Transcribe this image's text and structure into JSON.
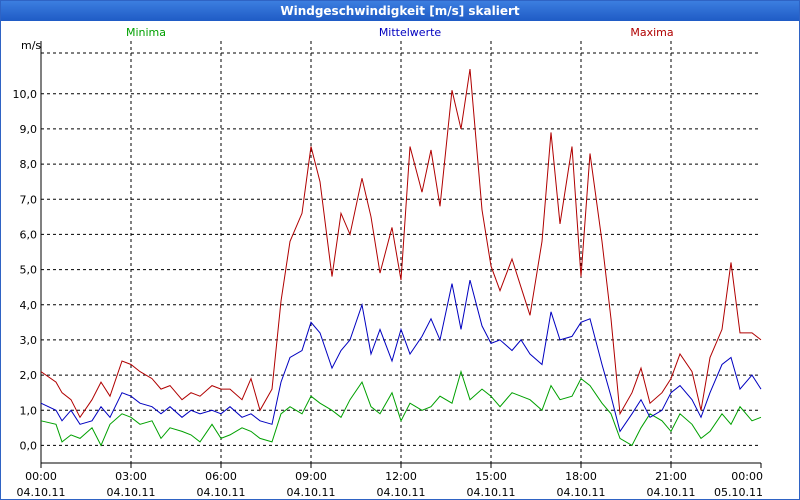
{
  "window": {
    "title": "Windgeschwindigkeit [m/s] skaliert"
  },
  "chart_data": {
    "type": "line",
    "title": "Windgeschwindigkeit [m/s] skaliert",
    "ylabel": "m/s",
    "xlabel": "",
    "ylim": [
      -0.5,
      11.5
    ],
    "xlim": [
      0,
      24
    ],
    "yticks": [
      0,
      1,
      2,
      3,
      4,
      5,
      6,
      7,
      8,
      9,
      10
    ],
    "ytick_labels": [
      "0,0",
      "1,0",
      "2,0",
      "3,0",
      "4,0",
      "5,0",
      "6,0",
      "7,0",
      "8,0",
      "9,0",
      "10,0"
    ],
    "xticks": [
      0,
      3,
      6,
      9,
      12,
      15,
      18,
      21,
      24
    ],
    "xtick_times": [
      "00:00",
      "03:00",
      "06:00",
      "09:00",
      "12:00",
      "15:00",
      "18:00",
      "21:00",
      "00:00"
    ],
    "xtick_dates": [
      "04.10.11",
      "04.10.11",
      "04.10.11",
      "04.10.11",
      "04.10.11",
      "04.10.11",
      "04.10.11",
      "04.10.11",
      "05.10.11"
    ],
    "grid": true,
    "series": [
      {
        "name": "Minima",
        "color": "#00a000",
        "x": [
          0,
          0.5,
          0.7,
          1,
          1.3,
          1.7,
          2,
          2.3,
          2.7,
          3,
          3.3,
          3.7,
          4,
          4.3,
          4.7,
          5,
          5.3,
          5.7,
          6,
          6.3,
          6.7,
          7,
          7.3,
          7.7,
          8,
          8.3,
          8.7,
          9,
          9.3,
          9.7,
          10,
          10.3,
          10.7,
          11,
          11.3,
          11.7,
          12,
          12.3,
          12.7,
          13,
          13.3,
          13.7,
          14,
          14.3,
          14.7,
          15,
          15.3,
          15.7,
          16,
          16.3,
          16.7,
          17,
          17.3,
          17.7,
          18,
          18.3,
          18.7,
          19,
          19.3,
          19.7,
          20,
          20.3,
          20.7,
          21,
          21.3,
          21.7,
          22,
          22.3,
          22.7,
          23,
          23.3,
          23.7,
          24
        ],
        "values": [
          0.7,
          0.6,
          0.1,
          0.3,
          0.2,
          0.5,
          0,
          0.6,
          0.9,
          0.8,
          0.6,
          0.7,
          0.2,
          0.5,
          0.4,
          0.3,
          0.1,
          0.6,
          0.2,
          0.3,
          0.5,
          0.4,
          0.2,
          0.1,
          0.9,
          1.1,
          0.9,
          1.4,
          1.2,
          1.0,
          0.8,
          1.3,
          1.8,
          1.1,
          0.9,
          1.5,
          0.7,
          1.2,
          1.0,
          1.1,
          1.4,
          1.2,
          2.1,
          1.3,
          1.6,
          1.4,
          1.1,
          1.5,
          1.4,
          1.3,
          1.0,
          1.7,
          1.3,
          1.4,
          1.9,
          1.7,
          1.2,
          0.9,
          0.2,
          0,
          0.5,
          0.9,
          0.7,
          0.4,
          0.9,
          0.6,
          0.2,
          0.4,
          0.9,
          0.6,
          1.1,
          0.7,
          0.8
        ]
      },
      {
        "name": "Mittelwerte",
        "color": "#0000c0",
        "x": [
          0,
          0.5,
          0.7,
          1,
          1.3,
          1.7,
          2,
          2.3,
          2.7,
          3,
          3.3,
          3.7,
          4,
          4.3,
          4.7,
          5,
          5.3,
          5.7,
          6,
          6.3,
          6.7,
          7,
          7.3,
          7.7,
          8,
          8.3,
          8.7,
          9,
          9.3,
          9.7,
          10,
          10.3,
          10.7,
          11,
          11.3,
          11.7,
          12,
          12.3,
          12.7,
          13,
          13.3,
          13.7,
          14,
          14.3,
          14.7,
          15,
          15.3,
          15.7,
          16,
          16.3,
          16.7,
          17,
          17.3,
          17.7,
          18,
          18.3,
          18.7,
          19,
          19.3,
          19.7,
          20,
          20.3,
          20.7,
          21,
          21.3,
          21.7,
          22,
          22.3,
          22.7,
          23,
          23.3,
          23.7,
          24
        ],
        "values": [
          1.2,
          1.0,
          0.7,
          1.0,
          0.6,
          0.7,
          1.1,
          0.8,
          1.5,
          1.4,
          1.2,
          1.1,
          0.9,
          1.1,
          0.8,
          1.0,
          0.9,
          1.0,
          0.9,
          1.1,
          0.8,
          0.9,
          0.7,
          0.6,
          1.8,
          2.5,
          2.7,
          3.5,
          3.2,
          2.2,
          2.7,
          3.0,
          4.0,
          2.6,
          3.3,
          2.4,
          3.3,
          2.6,
          3.1,
          3.6,
          3.0,
          4.6,
          3.3,
          4.7,
          3.4,
          2.9,
          3.0,
          2.7,
          3.0,
          2.6,
          2.3,
          3.8,
          3.0,
          3.1,
          3.5,
          3.6,
          2.3,
          1.4,
          0.4,
          0.9,
          1.3,
          0.8,
          1.0,
          1.5,
          1.7,
          1.3,
          0.8,
          1.5,
          2.3,
          2.5,
          1.6,
          2.0,
          1.6
        ]
      },
      {
        "name": "Maxima",
        "color": "#b00000",
        "x": [
          0,
          0.5,
          0.7,
          1,
          1.3,
          1.7,
          2,
          2.3,
          2.7,
          3,
          3.3,
          3.7,
          4,
          4.3,
          4.7,
          5,
          5.3,
          5.7,
          6,
          6.3,
          6.7,
          7,
          7.3,
          7.7,
          8,
          8.3,
          8.7,
          9,
          9.3,
          9.7,
          10,
          10.3,
          10.7,
          11,
          11.3,
          11.7,
          12,
          12.3,
          12.7,
          13,
          13.3,
          13.7,
          14,
          14.3,
          14.7,
          15,
          15.3,
          15.7,
          16,
          16.3,
          16.7,
          17,
          17.3,
          17.7,
          18,
          18.3,
          18.7,
          19,
          19.3,
          19.7,
          20,
          20.3,
          20.7,
          21,
          21.3,
          21.7,
          22,
          22.3,
          22.7,
          23,
          23.3,
          23.7,
          24
        ],
        "values": [
          2.1,
          1.8,
          1.5,
          1.3,
          0.8,
          1.3,
          1.8,
          1.4,
          2.4,
          2.3,
          2.1,
          1.9,
          1.6,
          1.7,
          1.3,
          1.5,
          1.4,
          1.7,
          1.6,
          1.6,
          1.3,
          1.9,
          1.0,
          1.6,
          4.1,
          5.8,
          6.6,
          8.5,
          7.5,
          4.8,
          6.6,
          6.0,
          7.6,
          6.5,
          4.9,
          6.2,
          4.7,
          8.5,
          7.2,
          8.4,
          6.8,
          10.1,
          9.0,
          10.7,
          6.7,
          5.1,
          4.4,
          5.3,
          4.5,
          3.7,
          5.8,
          8.9,
          6.3,
          8.5,
          4.8,
          8.3,
          5.8,
          3.6,
          0.9,
          1.5,
          2.2,
          1.2,
          1.5,
          1.9,
          2.6,
          2.1,
          1.0,
          2.5,
          3.3,
          5.2,
          3.2,
          3.2,
          3.0
        ]
      }
    ]
  }
}
